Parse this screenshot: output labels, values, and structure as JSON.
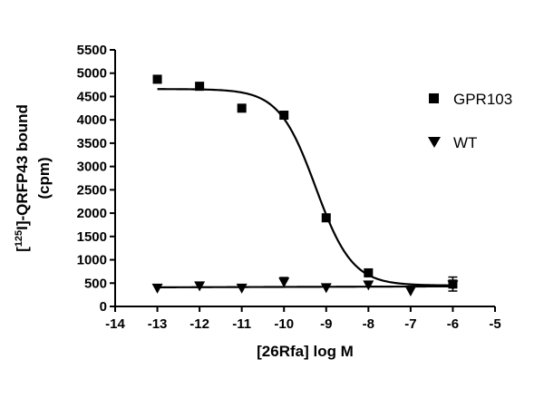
{
  "chart_data": {
    "type": "scatter",
    "xlabel": "[26Rfa]  log M",
    "ylabel_parts": {
      "prefix": "[",
      "sup": "125",
      "suffix": "I]-QRFP43 bound"
    },
    "ylabel_line2": "(cpm)",
    "xlim": [
      -14,
      -5
    ],
    "ylim": [
      0,
      5500
    ],
    "xticks": [
      -14,
      -13,
      -12,
      -11,
      -10,
      -9,
      -8,
      -7,
      -6,
      -5
    ],
    "yticks": [
      0,
      500,
      1000,
      1500,
      2000,
      2500,
      3000,
      3500,
      4000,
      4500,
      5000,
      5500
    ],
    "grid": false,
    "legend_position": "right",
    "series": [
      {
        "name": "GPR103",
        "marker": "square",
        "x": [
          -13,
          -12,
          -11,
          -10,
          -9,
          -8,
          -6
        ],
        "y": [
          4870,
          4720,
          4250,
          4100,
          1900,
          720,
          480
        ],
        "err": [
          0,
          0,
          0,
          0,
          0,
          0,
          150
        ],
        "fit": {
          "type": "sigmoid",
          "top": 4660,
          "bottom": 450,
          "logEC50": -9.25,
          "hill": 1.0
        }
      },
      {
        "name": "WT",
        "marker": "triangle-down",
        "x": [
          -13,
          -12,
          -11,
          -10,
          -9,
          -8,
          -7,
          -6
        ],
        "y": [
          390,
          440,
          390,
          520,
          400,
          460,
          330,
          460
        ],
        "err": [
          0,
          0,
          0,
          100,
          0,
          0,
          0,
          0
        ],
        "fit": {
          "type": "line",
          "y0": 410,
          "y1": 430
        }
      }
    ]
  }
}
